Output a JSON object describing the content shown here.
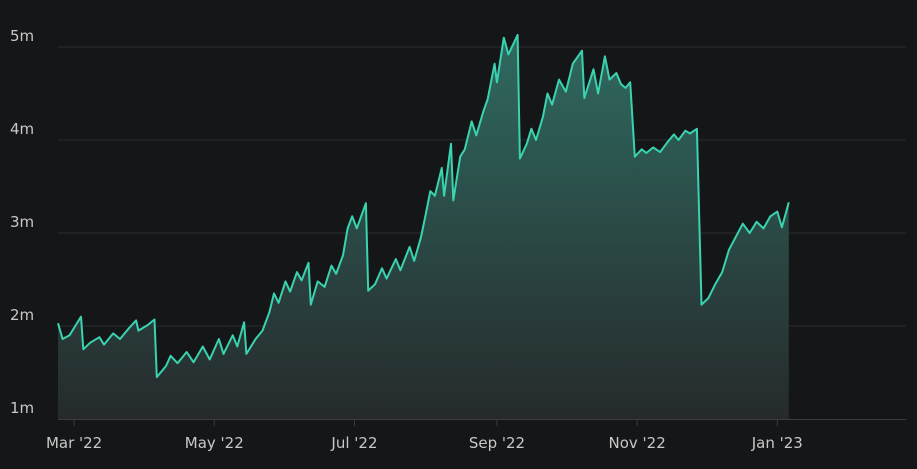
{
  "chart_data": {
    "type": "area",
    "title": "",
    "xlabel": "",
    "ylabel": "",
    "x_ticks": [
      "Mar '22",
      "May '22",
      "Jul '22",
      "Sep '22",
      "Nov '22",
      "Jan '23"
    ],
    "y_ticks": [
      "1m",
      "2m",
      "3m",
      "4m",
      "5m"
    ],
    "ylim": [
      1000000,
      5000000
    ],
    "xlim": [
      "2022-02-22",
      "2023-02-26"
    ],
    "grid": true,
    "colors": {
      "line": "#39d3b0",
      "fill_top": "#2f6a60",
      "fill_bottom": "#262a2c"
    },
    "series": [
      {
        "points": [
          [
            "2022-02-22",
            2030000
          ],
          [
            "2022-02-24",
            1860000
          ],
          [
            "2022-02-27",
            1900000
          ],
          [
            "2022-03-01",
            1980000
          ],
          [
            "2022-03-04",
            2100000
          ],
          [
            "2022-03-05",
            1750000
          ],
          [
            "2022-03-08",
            1820000
          ],
          [
            "2022-03-12",
            1880000
          ],
          [
            "2022-03-14",
            1800000
          ],
          [
            "2022-03-18",
            1920000
          ],
          [
            "2022-03-21",
            1860000
          ],
          [
            "2022-03-25",
            1980000
          ],
          [
            "2022-03-28",
            2060000
          ],
          [
            "2022-03-29",
            1950000
          ],
          [
            "2022-04-02",
            2010000
          ],
          [
            "2022-04-05",
            2070000
          ],
          [
            "2022-04-06",
            1450000
          ],
          [
            "2022-04-10",
            1570000
          ],
          [
            "2022-04-12",
            1680000
          ],
          [
            "2022-04-15",
            1600000
          ],
          [
            "2022-04-19",
            1720000
          ],
          [
            "2022-04-22",
            1610000
          ],
          [
            "2022-04-26",
            1780000
          ],
          [
            "2022-04-29",
            1640000
          ],
          [
            "2022-05-03",
            1860000
          ],
          [
            "2022-05-05",
            1700000
          ],
          [
            "2022-05-09",
            1900000
          ],
          [
            "2022-05-11",
            1780000
          ],
          [
            "2022-05-14",
            2040000
          ],
          [
            "2022-05-15",
            1700000
          ],
          [
            "2022-05-19",
            1860000
          ],
          [
            "2022-05-22",
            1950000
          ],
          [
            "2022-05-25",
            2150000
          ],
          [
            "2022-05-27",
            2350000
          ],
          [
            "2022-05-29",
            2250000
          ],
          [
            "2022-06-01",
            2480000
          ],
          [
            "2022-06-03",
            2370000
          ],
          [
            "2022-06-06",
            2580000
          ],
          [
            "2022-06-08",
            2490000
          ],
          [
            "2022-06-11",
            2680000
          ],
          [
            "2022-06-12",
            2230000
          ],
          [
            "2022-06-15",
            2480000
          ],
          [
            "2022-06-18",
            2420000
          ],
          [
            "2022-06-21",
            2650000
          ],
          [
            "2022-06-23",
            2560000
          ],
          [
            "2022-06-26",
            2760000
          ],
          [
            "2022-06-28",
            3050000
          ],
          [
            "2022-06-30",
            3180000
          ],
          [
            "2022-07-02",
            3050000
          ],
          [
            "2022-07-06",
            3320000
          ],
          [
            "2022-07-07",
            2380000
          ],
          [
            "2022-07-10",
            2450000
          ],
          [
            "2022-07-13",
            2620000
          ],
          [
            "2022-07-15",
            2510000
          ],
          [
            "2022-07-19",
            2720000
          ],
          [
            "2022-07-21",
            2600000
          ],
          [
            "2022-07-25",
            2850000
          ],
          [
            "2022-07-27",
            2700000
          ],
          [
            "2022-07-30",
            2960000
          ],
          [
            "2022-08-01",
            3200000
          ],
          [
            "2022-08-03",
            3450000
          ],
          [
            "2022-08-05",
            3400000
          ],
          [
            "2022-08-08",
            3700000
          ],
          [
            "2022-08-09",
            3400000
          ],
          [
            "2022-08-12",
            3960000
          ],
          [
            "2022-08-13",
            3350000
          ],
          [
            "2022-08-16",
            3820000
          ],
          [
            "2022-08-18",
            3900000
          ],
          [
            "2022-08-21",
            4200000
          ],
          [
            "2022-08-23",
            4050000
          ],
          [
            "2022-08-26",
            4300000
          ],
          [
            "2022-08-28",
            4440000
          ],
          [
            "2022-08-31",
            4820000
          ],
          [
            "2022-09-01",
            4620000
          ],
          [
            "2022-09-04",
            5100000
          ],
          [
            "2022-09-06",
            4920000
          ],
          [
            "2022-09-10",
            5130000
          ],
          [
            "2022-09-11",
            3800000
          ],
          [
            "2022-09-14",
            3960000
          ],
          [
            "2022-09-16",
            4120000
          ],
          [
            "2022-09-18",
            4000000
          ],
          [
            "2022-09-21",
            4250000
          ],
          [
            "2022-09-23",
            4500000
          ],
          [
            "2022-09-25",
            4380000
          ],
          [
            "2022-09-28",
            4650000
          ],
          [
            "2022-10-01",
            4520000
          ],
          [
            "2022-10-04",
            4820000
          ],
          [
            "2022-10-08",
            4960000
          ],
          [
            "2022-10-09",
            4450000
          ],
          [
            "2022-10-13",
            4760000
          ],
          [
            "2022-10-15",
            4500000
          ],
          [
            "2022-10-18",
            4900000
          ],
          [
            "2022-10-20",
            4650000
          ],
          [
            "2022-10-23",
            4720000
          ],
          [
            "2022-10-25",
            4600000
          ],
          [
            "2022-10-27",
            4560000
          ],
          [
            "2022-10-29",
            4620000
          ],
          [
            "2022-10-31",
            3820000
          ],
          [
            "2022-11-03",
            3900000
          ],
          [
            "2022-11-05",
            3860000
          ],
          [
            "2022-11-08",
            3920000
          ],
          [
            "2022-11-11",
            3870000
          ],
          [
            "2022-11-14",
            3970000
          ],
          [
            "2022-11-17",
            4060000
          ],
          [
            "2022-11-19",
            4000000
          ],
          [
            "2022-11-22",
            4100000
          ],
          [
            "2022-11-24",
            4070000
          ],
          [
            "2022-11-27",
            4120000
          ],
          [
            "2022-11-29",
            2230000
          ],
          [
            "2022-12-02",
            2300000
          ],
          [
            "2022-12-05",
            2450000
          ],
          [
            "2022-12-08",
            2580000
          ],
          [
            "2022-12-11",
            2820000
          ],
          [
            "2022-12-14",
            2960000
          ],
          [
            "2022-12-17",
            3100000
          ],
          [
            "2022-12-20",
            3000000
          ],
          [
            "2022-12-23",
            3120000
          ],
          [
            "2022-12-26",
            3050000
          ],
          [
            "2022-12-29",
            3180000
          ],
          [
            "2023-01-01",
            3230000
          ],
          [
            "2023-01-03",
            3060000
          ],
          [
            "2023-01-06",
            3330000
          ]
        ]
      }
    ]
  }
}
